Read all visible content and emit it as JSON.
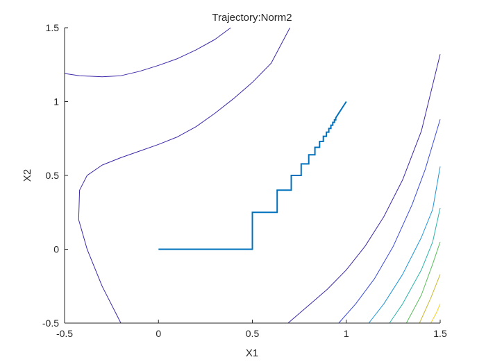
{
  "chart_data": {
    "type": "line",
    "title": "Trajectory:Norm2",
    "xlabel": "X1",
    "ylabel": "X2",
    "xlim": [
      -0.5,
      1.5
    ],
    "ylim": [
      -0.5,
      1.5
    ],
    "xticks": [
      -0.5,
      0,
      0.5,
      1,
      1.5
    ],
    "xtick_labels": [
      "-0.5",
      "0",
      "0.5",
      "1",
      "1.5"
    ],
    "yticks": [
      -0.5,
      0,
      0.5,
      1,
      1.5
    ],
    "ytick_labels": [
      "-0.5",
      "0",
      "0.5",
      "1",
      "1.5"
    ],
    "grid": false,
    "series": [
      {
        "color": "#0072BD",
        "x": [
          0,
          0.5,
          0.5,
          0.632,
          0.632,
          0.707,
          0.707,
          0.76,
          0.76,
          0.8,
          0.8,
          0.833,
          0.833,
          0.858,
          0.858,
          0.878,
          0.878,
          0.894,
          0.894,
          0.907,
          0.907,
          0.918,
          0.918,
          0.928,
          0.928,
          0.937,
          0.937,
          0.944,
          0.944,
          1.0
        ],
        "y": [
          0,
          0,
          0.25,
          0.25,
          0.4,
          0.4,
          0.5,
          0.5,
          0.578,
          0.578,
          0.64,
          0.64,
          0.69,
          0.69,
          0.73,
          0.73,
          0.765,
          0.765,
          0.793,
          0.793,
          0.818,
          0.818,
          0.84,
          0.84,
          0.859,
          0.859,
          0.876,
          0.876,
          0.89,
          1.0
        ]
      }
    ],
    "contours": [
      {
        "color": "#3e26a8",
        "x": [
          -0.5,
          -0.42,
          -0.3,
          -0.2,
          -0.1,
          0.0,
          0.1,
          0.2,
          0.3,
          0.385
        ],
        "y": [
          1.19,
          1.175,
          1.168,
          1.175,
          1.205,
          1.245,
          1.29,
          1.35,
          1.42,
          1.5
        ]
      },
      {
        "color": "#3e26a8",
        "x": [
          -0.2,
          -0.3,
          -0.38,
          -0.425,
          -0.42,
          -0.38,
          -0.3,
          -0.2,
          -0.1,
          0.0,
          0.1,
          0.2,
          0.3,
          0.4,
          0.5,
          0.6,
          0.7
        ],
        "y": [
          -0.5,
          -0.25,
          0.0,
          0.2,
          0.4,
          0.5,
          0.57,
          0.62,
          0.665,
          0.71,
          0.76,
          0.83,
          0.92,
          1.02,
          1.13,
          1.26,
          1.5
        ]
      },
      {
        "color": "#3e26a8",
        "x": [
          0.69,
          0.8,
          0.9,
          1.0,
          1.1,
          1.2,
          1.3,
          1.4,
          1.5
        ],
        "y": [
          -0.5,
          -0.38,
          -0.27,
          -0.14,
          0.02,
          0.22,
          0.47,
          0.8,
          1.32
        ]
      },
      {
        "color": "#3a49d9",
        "x": [
          0.96,
          1.05,
          1.15,
          1.25,
          1.35,
          1.42,
          1.5
        ],
        "y": [
          -0.5,
          -0.37,
          -0.2,
          0.02,
          0.3,
          0.54,
          0.88
        ]
      },
      {
        "color": "#1c95d8",
        "x": [
          1.12,
          1.2,
          1.3,
          1.4,
          1.46,
          1.5
        ],
        "y": [
          -0.5,
          -0.37,
          -0.17,
          0.08,
          0.27,
          0.56
        ]
      },
      {
        "color": "#2ab4a8",
        "x": [
          1.23,
          1.3,
          1.4,
          1.46,
          1.5
        ],
        "y": [
          -0.5,
          -0.37,
          -0.14,
          0.05,
          0.28
        ]
      },
      {
        "color": "#58bd58",
        "x": [
          1.32,
          1.4,
          1.46,
          1.5
        ],
        "y": [
          -0.5,
          -0.31,
          -0.1,
          0.05
        ]
      },
      {
        "color": "#c9b933",
        "x": [
          1.39,
          1.45,
          1.5
        ],
        "y": [
          -0.5,
          -0.33,
          -0.17
        ]
      },
      {
        "color": "#f9d11f",
        "x": [
          1.45,
          1.48,
          1.5
        ],
        "y": [
          -0.5,
          -0.43,
          -0.37
        ]
      }
    ]
  }
}
